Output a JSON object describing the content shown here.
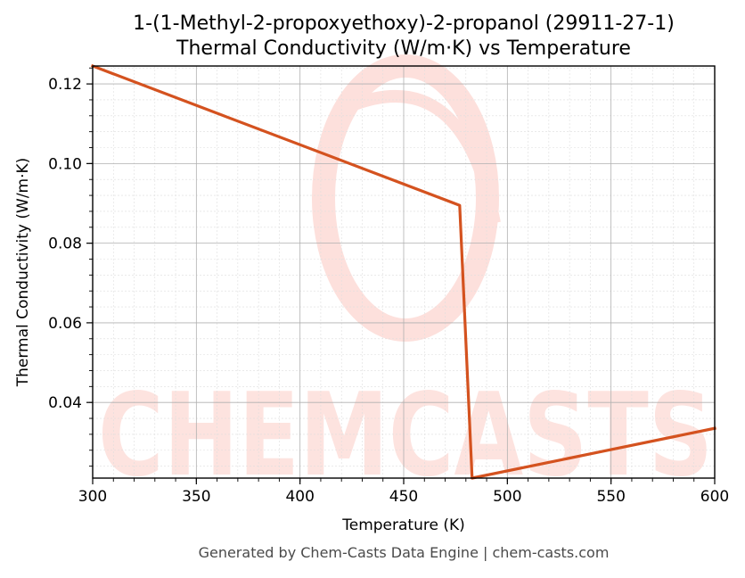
{
  "chart_data": {
    "type": "line",
    "title": [
      "1-(1-Methyl-2-propoxyethoxy)-2-propanol (29911-27-1)",
      "Thermal Conductivity (W/m·K) vs Temperature"
    ],
    "xlabel": "Temperature (K)",
    "ylabel": "Thermal Conductivity (W/m·K)",
    "xlim": [
      300,
      600
    ],
    "ylim": [
      0.021,
      0.1245
    ],
    "x_ticks": [
      300,
      350,
      400,
      450,
      500,
      550,
      600
    ],
    "x_tick_labels": [
      "300",
      "350",
      "400",
      "450",
      "500",
      "550",
      "600"
    ],
    "y_ticks": [
      0.04,
      0.06,
      0.08,
      0.1,
      0.12
    ],
    "y_tick_labels": [
      "0.04",
      "0.06",
      "0.08",
      "0.10",
      "0.12"
    ],
    "grid": true,
    "minor_grid": true,
    "legend": "none",
    "series": [
      {
        "color": "#d4521f",
        "points": [
          [
            300,
            0.1245
          ],
          [
            477,
            0.0895
          ],
          [
            483,
            0.021
          ],
          [
            600,
            0.0335
          ]
        ]
      }
    ]
  },
  "watermark": {
    "text": "CHEMCASTS",
    "color": "#fde0dc"
  },
  "footer": {
    "text": "Generated by Chem-Casts Data Engine | chem-casts.com"
  }
}
